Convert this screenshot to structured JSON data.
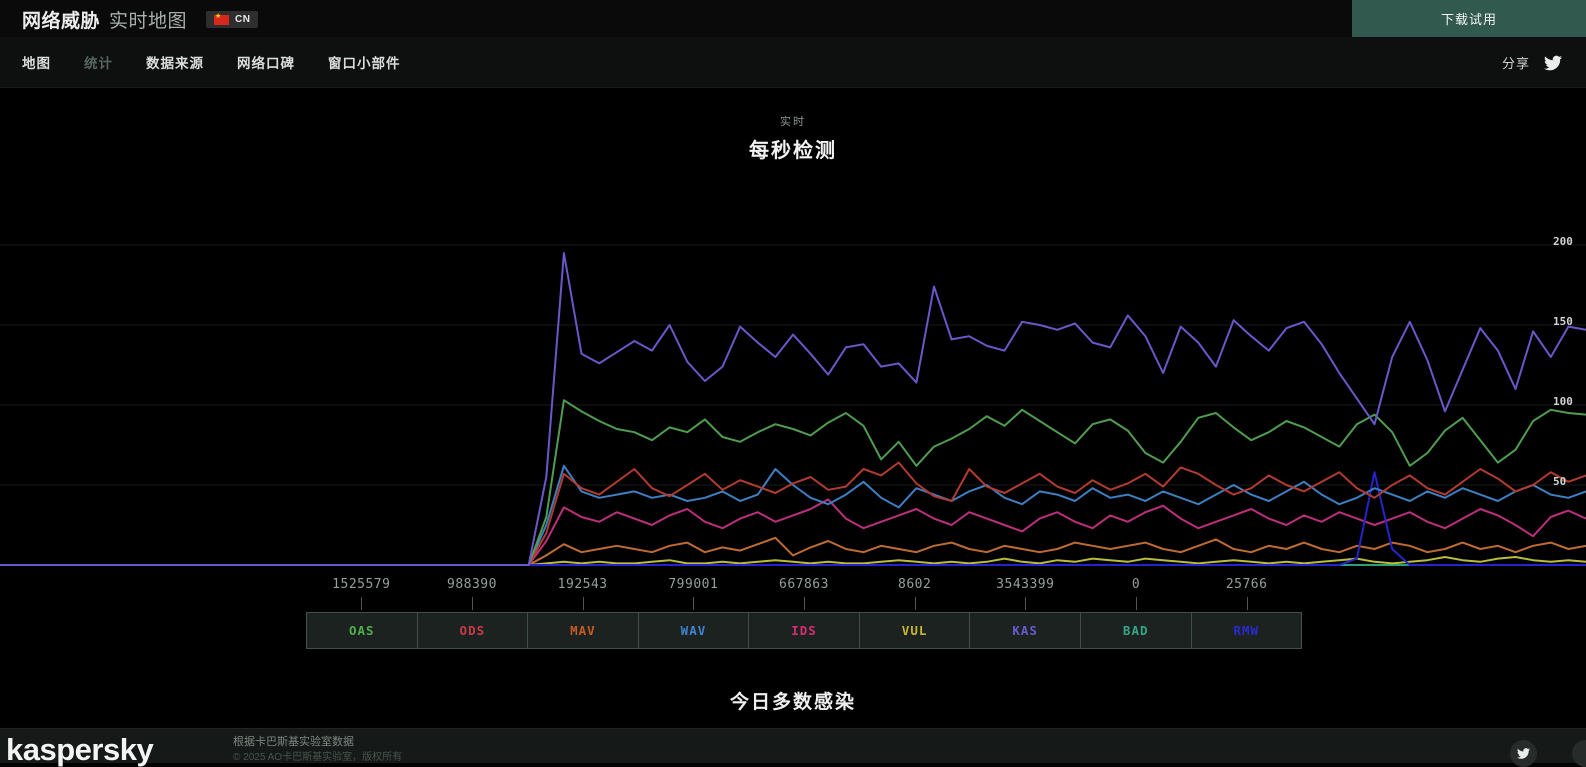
{
  "header": {
    "title_bold": "网络威胁",
    "title_light": "实时地图",
    "language": "CN",
    "download_button": "下载试用"
  },
  "nav": {
    "items": [
      {
        "label": "地图",
        "active": false
      },
      {
        "label": "统计",
        "active": true
      },
      {
        "label": "数据来源",
        "active": false
      },
      {
        "label": "网络口碑",
        "active": false
      },
      {
        "label": "窗口小部件",
        "active": false
      }
    ],
    "share_label": "分享"
  },
  "chart_data": {
    "type": "line",
    "subtitle": "实时",
    "title": "每秒检测",
    "xlabel": "",
    "ylabel": "",
    "ylim": [
      0,
      200
    ],
    "yticks": [
      200,
      150,
      100,
      50
    ],
    "grid": true,
    "n": 91,
    "series": [
      {
        "name": "BAD",
        "color": "#2e9e78",
        "lead_zeros": 91,
        "values": []
      },
      {
        "name": "VUL",
        "color": "#b9bd3a",
        "lead_zeros": 31,
        "values": [
          1,
          2,
          1,
          2,
          1,
          1,
          2,
          3,
          1,
          1,
          2,
          1,
          2,
          3,
          2,
          1,
          2,
          1,
          1,
          2,
          3,
          2,
          1,
          2,
          1,
          2,
          4,
          2,
          1,
          3,
          2,
          4,
          3,
          2,
          4,
          3,
          2,
          1,
          2,
          3,
          2,
          1,
          2,
          1,
          2,
          3,
          4,
          2,
          1,
          2,
          3,
          5,
          3,
          2,
          4,
          5,
          3,
          2,
          3,
          2
        ]
      },
      {
        "name": "MAV",
        "color": "#bf6c33",
        "lead_zeros": 31,
        "values": [
          6,
          13,
          8,
          10,
          12,
          10,
          8,
          12,
          14,
          8,
          11,
          9,
          13,
          17,
          6,
          11,
          15,
          10,
          8,
          12,
          10,
          8,
          12,
          14,
          10,
          8,
          12,
          10,
          8,
          10,
          14,
          12,
          10,
          12,
          14,
          10,
          8,
          12,
          16,
          10,
          8,
          12,
          10,
          14,
          10,
          8,
          12,
          10,
          14,
          12,
          8,
          10,
          14,
          10,
          12,
          8,
          12,
          14,
          10,
          12
        ]
      },
      {
        "name": "IDS",
        "color": "#bb2f7d",
        "lead_zeros": 31,
        "values": [
          15,
          36,
          30,
          27,
          33,
          29,
          25,
          31,
          35,
          27,
          23,
          29,
          33,
          27,
          31,
          35,
          41,
          29,
          23,
          27,
          31,
          35,
          29,
          25,
          33,
          29,
          25,
          21,
          29,
          33,
          27,
          23,
          31,
          27,
          33,
          37,
          29,
          23,
          27,
          31,
          35,
          29,
          25,
          31,
          27,
          33,
          29,
          25,
          29,
          33,
          27,
          23,
          29,
          35,
          31,
          25,
          18,
          30,
          34,
          29
        ]
      },
      {
        "name": "RMW",
        "color": "#2424cc",
        "lead_zeros": 77,
        "values": [
          4,
          58,
          10
        ]
      },
      {
        "name": "WAV",
        "color": "#3e7fc1",
        "lead_zeros": 31,
        "values": [
          25,
          62,
          46,
          42,
          44,
          46,
          42,
          44,
          40,
          42,
          46,
          40,
          44,
          60,
          50,
          42,
          38,
          44,
          52,
          42,
          36,
          48,
          44,
          40,
          46,
          50,
          42,
          38,
          46,
          44,
          40,
          48,
          42,
          44,
          40,
          46,
          42,
          38,
          44,
          50,
          44,
          40,
          46,
          52,
          44,
          38,
          42,
          48,
          44,
          40,
          46,
          42,
          48,
          44,
          40,
          46,
          50,
          44,
          42,
          46
        ]
      },
      {
        "name": "ODS",
        "color": "#b23b31",
        "lead_zeros": 31,
        "values": [
          20,
          57,
          48,
          44,
          52,
          60,
          48,
          43,
          50,
          57,
          47,
          53,
          49,
          45,
          51,
          55,
          47,
          49,
          60,
          56,
          64,
          51,
          43,
          40,
          60,
          49,
          45,
          51,
          57,
          49,
          45,
          53,
          47,
          51,
          57,
          49,
          61,
          57,
          50,
          44,
          48,
          56,
          50,
          46,
          52,
          58,
          48,
          42,
          50,
          56,
          48,
          44,
          52,
          60,
          54,
          46,
          50,
          58,
          52,
          56
        ]
      },
      {
        "name": "OAS",
        "color": "#4f9d50",
        "lead_zeros": 31,
        "values": [
          30,
          103,
          96,
          90,
          85,
          83,
          78,
          86,
          83,
          91,
          80,
          77,
          83,
          88,
          85,
          81,
          89,
          95,
          87,
          66,
          77,
          62,
          74,
          79,
          85,
          93,
          87,
          97,
          90,
          83,
          76,
          88,
          91,
          84,
          70,
          64,
          77,
          92,
          95,
          86,
          78,
          83,
          90,
          86,
          80,
          74,
          88,
          94,
          83,
          62,
          70,
          84,
          92,
          78,
          64,
          72,
          90,
          97,
          95,
          94
        ]
      },
      {
        "name": "KAS",
        "color": "#6a57c8",
        "lead_zeros": 31,
        "values": [
          55,
          195,
          132,
          126,
          133,
          140,
          134,
          150,
          127,
          115,
          124,
          149,
          139,
          130,
          144,
          132,
          119,
          136,
          138,
          124,
          126,
          114,
          174,
          141,
          143,
          137,
          134,
          152,
          150,
          147,
          151,
          139,
          136,
          156,
          143,
          120,
          149,
          139,
          124,
          153,
          143,
          134,
          148,
          152,
          138,
          120,
          104,
          88,
          130,
          152,
          128,
          96,
          122,
          148,
          134,
          110,
          146,
          130,
          149,
          147
        ]
      }
    ]
  },
  "legend": {
    "items": [
      {
        "label": "OAS",
        "value": "1525579",
        "color": "#4fae4f"
      },
      {
        "label": "ODS",
        "value": "988390",
        "color": "#c93a4a"
      },
      {
        "label": "MAV",
        "value": "192543",
        "color": "#c75b24"
      },
      {
        "label": "WAV",
        "value": "799001",
        "color": "#4083cf"
      },
      {
        "label": "IDS",
        "value": "667863",
        "color": "#d62e72"
      },
      {
        "label": "VUL",
        "value": "8602",
        "color": "#c9b62e"
      },
      {
        "label": "KAS",
        "value": "3543399",
        "color": "#6a5ad0"
      },
      {
        "label": "BAD",
        "value": "0",
        "color": "#37a585"
      },
      {
        "label": "RMW",
        "value": "25766",
        "color": "#2a2ad0"
      }
    ]
  },
  "section": {
    "heading": "今日多数感染"
  },
  "footer": {
    "logo": "kaspersky",
    "line1": "根据卡巴斯基实验室数据",
    "line2": "© 2025 AO卡巴斯基实验室，版权所有"
  }
}
